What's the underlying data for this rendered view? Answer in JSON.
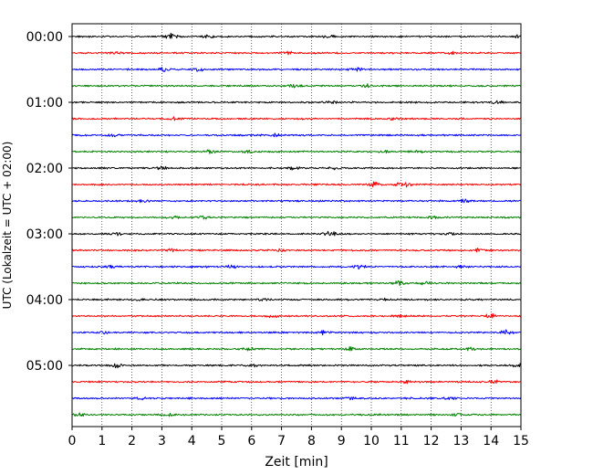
{
  "chart_data": {
    "type": "line",
    "title": "",
    "xlabel": "Zeit  [min]",
    "ylabel": "UTC (Lokalzeit = UTC + 02:00)",
    "xlim": [
      0,
      15
    ],
    "x_ticks": [
      "0",
      "1",
      "2",
      "3",
      "4",
      "5",
      "6",
      "7",
      "8",
      "9",
      "10",
      "11",
      "12",
      "13",
      "14",
      "15"
    ],
    "y_ticks": [
      "00:00",
      "01:00",
      "02:00",
      "03:00",
      "04:00",
      "05:00"
    ],
    "grid": "vertical dotted",
    "trace_colors": [
      "#000000",
      "#ff0000",
      "#0000ff",
      "#008000"
    ],
    "trace_count": 24,
    "trace_interval_minutes": 15,
    "series": [
      {
        "start": "00:00",
        "color": "#000000",
        "bursts": [
          [
            3.3,
            1.0
          ],
          [
            4.6,
            0.5
          ],
          [
            8.6,
            0.4
          ],
          [
            14.9,
            0.6
          ]
        ]
      },
      {
        "start": "00:15",
        "color": "#ff0000",
        "bursts": [
          [
            1.5,
            0.5
          ],
          [
            7.2,
            0.6
          ],
          [
            12.6,
            0.4
          ]
        ]
      },
      {
        "start": "00:30",
        "color": "#0000ff",
        "bursts": [
          [
            3.1,
            0.8
          ],
          [
            4.2,
            0.9
          ],
          [
            9.5,
            0.5
          ]
        ]
      },
      {
        "start": "00:45",
        "color": "#008000",
        "bursts": [
          [
            7.4,
            0.8
          ],
          [
            9.8,
            0.6
          ]
        ]
      },
      {
        "start": "01:00",
        "color": "#000000",
        "bursts": [
          [
            8.6,
            0.6
          ],
          [
            14.2,
            0.6
          ]
        ]
      },
      {
        "start": "01:15",
        "color": "#ff0000",
        "bursts": [
          [
            3.4,
            0.6
          ],
          [
            10.7,
            0.6
          ]
        ]
      },
      {
        "start": "01:30",
        "color": "#0000ff",
        "bursts": [
          [
            1.4,
            0.4
          ],
          [
            6.8,
            0.4
          ]
        ]
      },
      {
        "start": "01:45",
        "color": "#008000",
        "bursts": [
          [
            4.6,
            0.6
          ],
          [
            5.9,
            0.6
          ],
          [
            10.4,
            0.5
          ],
          [
            11.5,
            0.5
          ]
        ]
      },
      {
        "start": "02:00",
        "color": "#000000",
        "bursts": [
          [
            3.0,
            0.6
          ],
          [
            7.4,
            0.6
          ],
          [
            8.8,
            0.5
          ]
        ]
      },
      {
        "start": "02:15",
        "color": "#ff0000",
        "bursts": [
          [
            10.1,
            0.8
          ],
          [
            10.9,
            0.6
          ],
          [
            11.2,
            0.6
          ]
        ]
      },
      {
        "start": "02:30",
        "color": "#0000ff",
        "bursts": [
          [
            2.4,
            0.5
          ],
          [
            13.1,
            0.6
          ]
        ]
      },
      {
        "start": "02:45",
        "color": "#008000",
        "bursts": [
          [
            3.4,
            0.5
          ],
          [
            4.4,
            0.7
          ],
          [
            12.1,
            0.5
          ]
        ]
      },
      {
        "start": "03:00",
        "color": "#000000",
        "bursts": [
          [
            1.5,
            0.5
          ],
          [
            8.6,
            1.0
          ],
          [
            12.6,
            0.5
          ]
        ]
      },
      {
        "start": "03:15",
        "color": "#ff0000",
        "bursts": [
          [
            3.3,
            0.5
          ],
          [
            7.0,
            0.6
          ],
          [
            13.6,
            0.5
          ]
        ]
      },
      {
        "start": "03:30",
        "color": "#0000ff",
        "bursts": [
          [
            1.3,
            0.6
          ],
          [
            5.3,
            0.5
          ],
          [
            9.6,
            0.7
          ],
          [
            13.0,
            0.4
          ]
        ]
      },
      {
        "start": "03:45",
        "color": "#008000",
        "bursts": [
          [
            10.9,
            0.8
          ],
          [
            11.8,
            0.6
          ]
        ]
      },
      {
        "start": "04:00",
        "color": "#000000",
        "bursts": [
          [
            2.2,
            0.4
          ],
          [
            6.4,
            0.4
          ],
          [
            10.4,
            0.4
          ]
        ]
      },
      {
        "start": "04:15",
        "color": "#ff0000",
        "bursts": [
          [
            6.7,
            0.6
          ],
          [
            10.9,
            0.5
          ],
          [
            14.0,
            0.7
          ]
        ]
      },
      {
        "start": "04:30",
        "color": "#0000ff",
        "bursts": [
          [
            1.1,
            0.5
          ],
          [
            8.4,
            0.6
          ],
          [
            14.5,
            0.8
          ]
        ]
      },
      {
        "start": "04:45",
        "color": "#008000",
        "bursts": [
          [
            5.9,
            0.5
          ],
          [
            9.3,
            0.6
          ],
          [
            13.3,
            0.5
          ]
        ]
      },
      {
        "start": "05:00",
        "color": "#000000",
        "bursts": [
          [
            1.5,
            0.7
          ],
          [
            6.0,
            0.5
          ],
          [
            14.9,
            0.6
          ]
        ]
      },
      {
        "start": "05:15",
        "color": "#ff0000",
        "bursts": [
          [
            11.2,
            0.5
          ],
          [
            14.1,
            0.5
          ]
        ]
      },
      {
        "start": "05:30",
        "color": "#0000ff",
        "bursts": [
          [
            2.3,
            0.6
          ],
          [
            9.3,
            0.4
          ],
          [
            12.6,
            0.5
          ]
        ]
      },
      {
        "start": "05:45",
        "color": "#008000",
        "bursts": [
          [
            0.2,
            0.6
          ],
          [
            3.2,
            0.5
          ],
          [
            12.9,
            0.5
          ]
        ]
      }
    ]
  }
}
